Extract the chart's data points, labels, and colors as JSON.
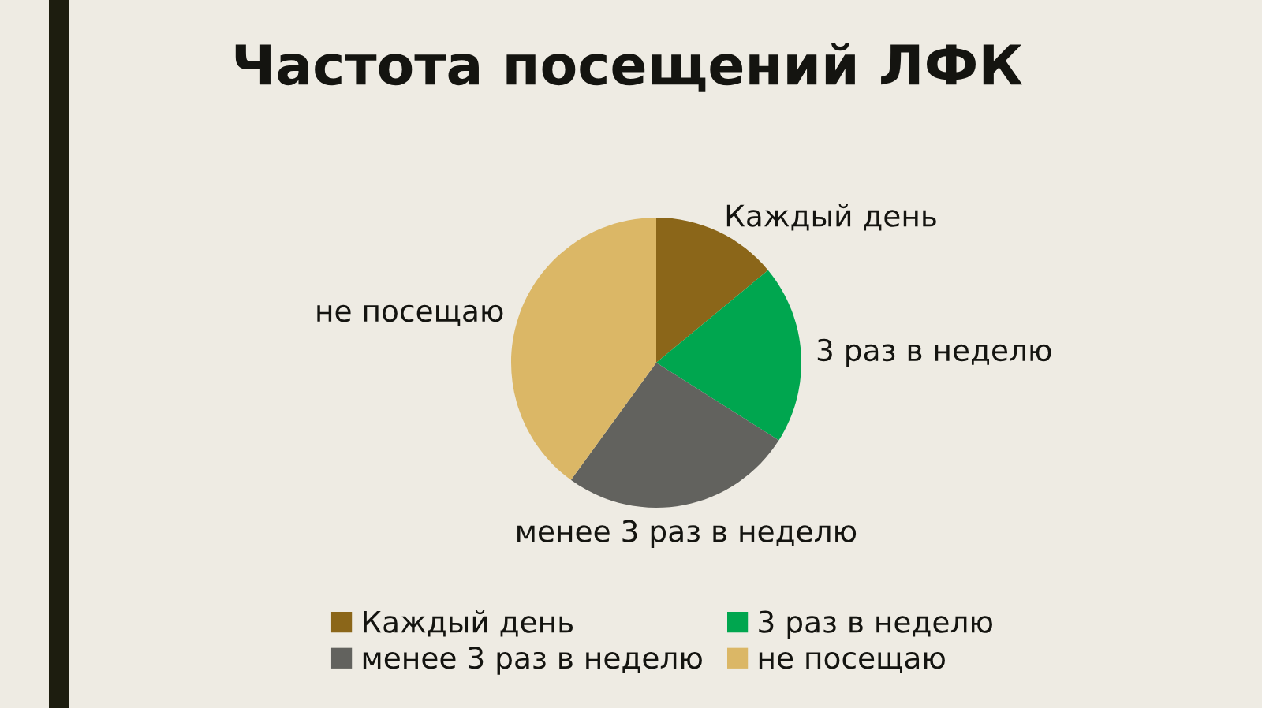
{
  "chart_data": {
    "type": "pie",
    "title": "Частота посещений ЛФК",
    "categories": [
      "Каждый день",
      "3 раз в неделю",
      "менее 3 раз в неделю",
      "не посещаю"
    ],
    "values": [
      14,
      20,
      26,
      40
    ],
    "colors": [
      "#8b6619",
      "#00a64f",
      "#62625e",
      "#dbb766"
    ],
    "legend": "bottom"
  }
}
